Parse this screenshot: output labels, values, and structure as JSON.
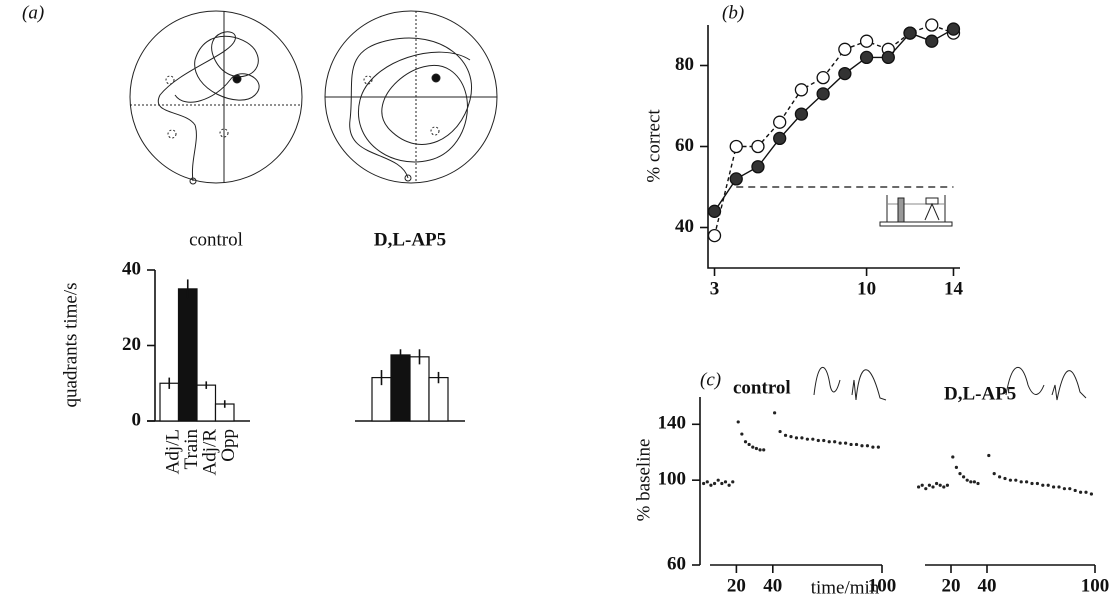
{
  "chart_data": [
    {
      "type": "bar",
      "panel": "(a)",
      "title": "control",
      "ylabel": "quadrants  time/s",
      "categories": [
        "Adj/L",
        "Train",
        "Adj/R",
        "Opp"
      ],
      "values": [
        10,
        35,
        9.5,
        4.5
      ],
      "errors": [
        1.5,
        2.5,
        1,
        1
      ],
      "colors": [
        "#ffffff",
        "#111111",
        "#ffffff",
        "#ffffff"
      ],
      "ylim": [
        0,
        40
      ],
      "yticks": [
        0,
        20,
        40
      ]
    },
    {
      "type": "bar",
      "title": "D,L-AP5",
      "categories": [
        null,
        null,
        null,
        null
      ],
      "values": [
        11.5,
        17.5,
        17,
        11.5
      ],
      "errors": [
        2,
        1.5,
        2,
        1.5
      ],
      "colors": [
        "#ffffff",
        "#111111",
        "#ffffff",
        "#ffffff"
      ],
      "ylim": [
        0,
        40
      ]
    },
    {
      "type": "line",
      "panel": "(b)",
      "ylabel": "% correct",
      "x": [
        3,
        4,
        5,
        6,
        7,
        8,
        9,
        10,
        11,
        12,
        13,
        14
      ],
      "series": [
        {
          "marker": "open",
          "dashed": true,
          "color": "#111111",
          "values": [
            38,
            60,
            60,
            66,
            74,
            77,
            84,
            86,
            84,
            88,
            90,
            88
          ]
        },
        {
          "marker": "filled",
          "dashed": false,
          "color": "#111111",
          "values": [
            44,
            52,
            55,
            62,
            68,
            73,
            78,
            82,
            82,
            88,
            86,
            89
          ]
        }
      ],
      "chance": 50,
      "xlim": [
        2.7,
        14.3
      ],
      "xticks": [
        3,
        10,
        14
      ],
      "ylim": [
        30,
        90
      ],
      "yticks": [
        40,
        60,
        80
      ]
    },
    {
      "type": "scatter",
      "panel": "(c)",
      "title": "control",
      "ylabel": "% baseline",
      "xlabel": "time/min",
      "log_y": true,
      "x": [
        2,
        4,
        6,
        8,
        10,
        12,
        14,
        16,
        18,
        21,
        23,
        25,
        27,
        29,
        31,
        33,
        35,
        41,
        44,
        47,
        50,
        53,
        56,
        59,
        62,
        65,
        68,
        71,
        74,
        77,
        80,
        83,
        86,
        89,
        92,
        95,
        98
      ],
      "values": [
        98,
        99,
        97,
        98,
        100,
        98,
        99,
        97,
        99,
        142,
        132,
        126,
        124,
        122,
        121,
        120,
        120,
        150,
        134,
        131,
        130,
        129,
        129,
        128,
        128,
        127,
        127,
        126,
        126,
        125,
        125,
        124,
        124,
        123,
        123,
        122,
        122
      ],
      "xlim": [
        0,
        100
      ],
      "xticks": [
        20,
        40,
        100
      ],
      "ylim": [
        60,
        165
      ],
      "yticks": [
        60,
        100,
        140
      ]
    },
    {
      "type": "scatter",
      "title": "D,L-AP5",
      "log_y": true,
      "x": [
        2,
        4,
        6,
        8,
        10,
        12,
        14,
        16,
        18,
        21,
        23,
        25,
        27,
        29,
        31,
        33,
        35,
        41,
        44,
        47,
        50,
        53,
        56,
        59,
        62,
        65,
        68,
        71,
        74,
        77,
        80,
        83,
        86,
        89,
        92,
        95,
        98
      ],
      "values": [
        96,
        97,
        95,
        97,
        96,
        98,
        97,
        96,
        97,
        115,
        108,
        104,
        102,
        100,
        99,
        99,
        98,
        116,
        104,
        102,
        101,
        100,
        100,
        99,
        99,
        98,
        98,
        97,
        97,
        96,
        96,
        95,
        95,
        94,
        93,
        93,
        92
      ],
      "xlim": [
        0,
        100
      ],
      "xticks": [
        20,
        40,
        100
      ],
      "ylim": [
        60,
        165
      ]
    }
  ]
}
